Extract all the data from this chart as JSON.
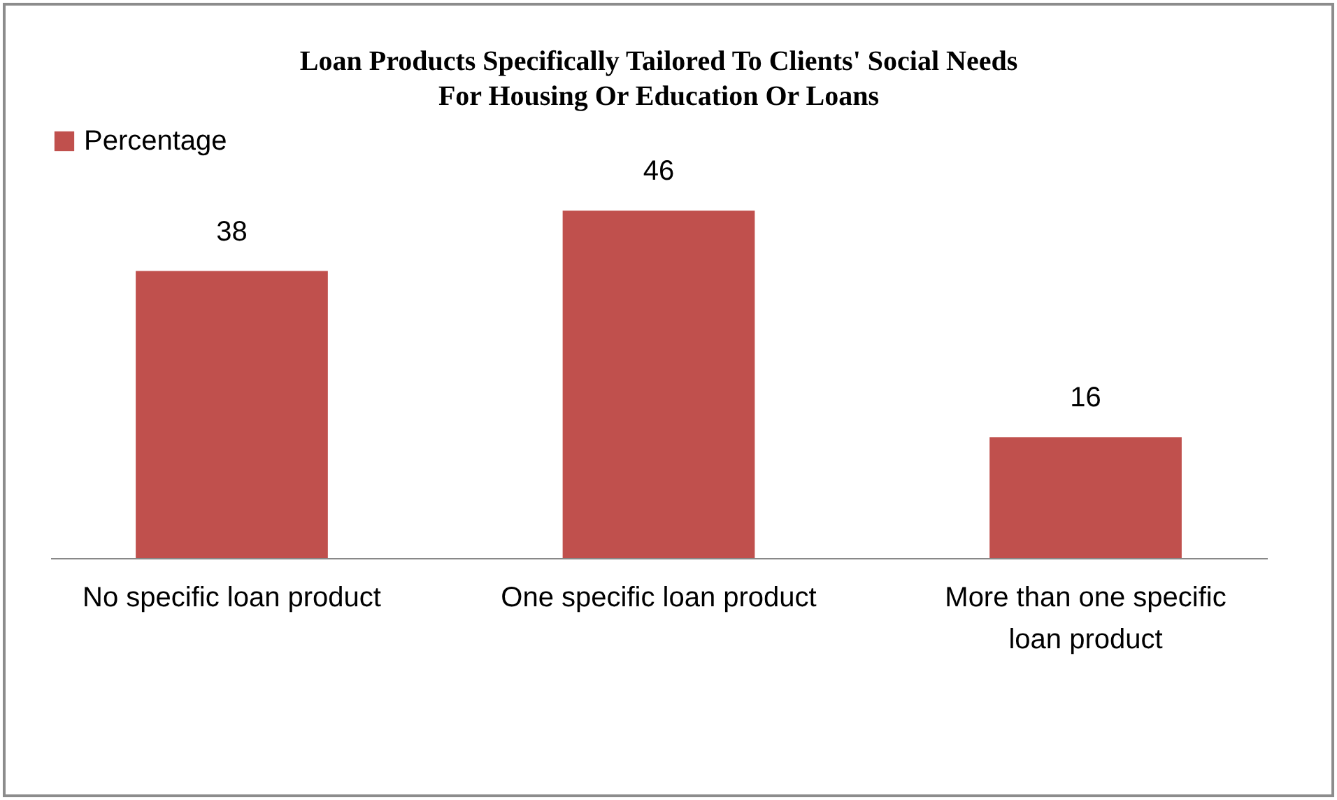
{
  "chart_data": {
    "type": "bar",
    "title": "Loan Products Specifically Tailored To Clients' Social Needs For Housing Or Education Or Loans",
    "categories": [
      "No specific loan product",
      "One specific loan product",
      "More than one specific loan product"
    ],
    "series": [
      {
        "name": "Percentage",
        "color": "#c0504d",
        "values": [
          38,
          46,
          16
        ]
      }
    ],
    "data_labels": true,
    "legend": "top",
    "grid": false
  }
}
